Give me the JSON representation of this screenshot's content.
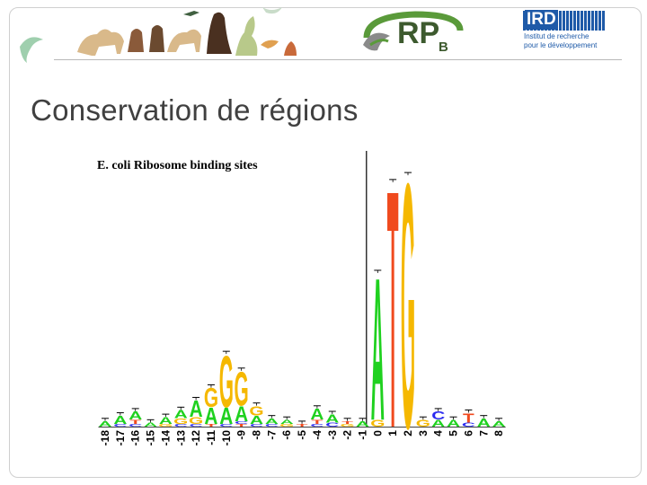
{
  "slide": {
    "title": "Conservation de régions"
  },
  "logos": {
    "rpb_letters": "RP",
    "rpb_subscript": "B",
    "ird_name": "IRD",
    "ird_line1": "Institut de recherche",
    "ird_line2": "pour le développement"
  },
  "colors": {
    "A": "#1fd11f",
    "C": "#2a2af0",
    "G": "#f5b800",
    "T": "#f04a1e",
    "title": "#404040",
    "ird_blue": "#1e5aa8",
    "rpb_green": "#3d5a2e"
  },
  "chart_data": {
    "type": "sequence_logo",
    "title": "E. coli Ribosome binding sites",
    "xlabel": "",
    "ylabel": "",
    "ylim": [
      0,
      2
    ],
    "positions": [
      "-18",
      "-17",
      "-16",
      "-15",
      "-14",
      "-13",
      "-12",
      "-11",
      "-10",
      "-9",
      "-8",
      "-7",
      "-6",
      "-5",
      "-4",
      "-3",
      "-2",
      "-1",
      "0",
      "1",
      "2",
      "3",
      "4",
      "5",
      "6",
      "7",
      "8"
    ],
    "letters": [
      [
        {
          "b": "A",
          "v": 0.04
        }
      ],
      [
        {
          "b": "C",
          "v": 0.02
        },
        {
          "b": "A",
          "v": 0.06
        }
      ],
      [
        {
          "b": "C",
          "v": 0.02
        },
        {
          "b": "T",
          "v": 0.03
        },
        {
          "b": "A",
          "v": 0.06
        }
      ],
      [
        {
          "b": "A",
          "v": 0.03
        }
      ],
      [
        {
          "b": "G",
          "v": 0.02
        },
        {
          "b": "A",
          "v": 0.05
        }
      ],
      [
        {
          "b": "C",
          "v": 0.02
        },
        {
          "b": "G",
          "v": 0.04
        },
        {
          "b": "A",
          "v": 0.06
        }
      ],
      [
        {
          "b": "C",
          "v": 0.02
        },
        {
          "b": "G",
          "v": 0.05
        },
        {
          "b": "A",
          "v": 0.12
        }
      ],
      [
        {
          "b": "T",
          "v": 0.02
        },
        {
          "b": "A",
          "v": 0.12
        },
        {
          "b": "G",
          "v": 0.14
        }
      ],
      [
        {
          "b": "C",
          "v": 0.02
        },
        {
          "b": "A",
          "v": 0.12
        },
        {
          "b": "G",
          "v": 0.38
        }
      ],
      [
        {
          "b": "T",
          "v": 0.02
        },
        {
          "b": "C",
          "v": 0.02
        },
        {
          "b": "A",
          "v": 0.11
        },
        {
          "b": "G",
          "v": 0.25
        }
      ],
      [
        {
          "b": "C",
          "v": 0.02
        },
        {
          "b": "A",
          "v": 0.06
        },
        {
          "b": "G",
          "v": 0.07
        }
      ],
      [
        {
          "b": "C",
          "v": 0.02
        },
        {
          "b": "A",
          "v": 0.04
        }
      ],
      [
        {
          "b": "G",
          "v": 0.02
        },
        {
          "b": "A",
          "v": 0.03
        }
      ],
      [
        {
          "b": "T",
          "v": 0.02
        }
      ],
      [
        {
          "b": "C",
          "v": 0.02
        },
        {
          "b": "T",
          "v": 0.03
        },
        {
          "b": "A",
          "v": 0.08
        }
      ],
      [
        {
          "b": "C",
          "v": 0.03
        },
        {
          "b": "A",
          "v": 0.06
        }
      ],
      [
        {
          "b": "G",
          "v": 0.02
        },
        {
          "b": "T",
          "v": 0.02
        }
      ],
      [
        {
          "b": "A",
          "v": 0.04
        }
      ],
      [
        {
          "b": "G",
          "v": 0.05
        },
        {
          "b": "A",
          "v": 1.05
        }
      ],
      [
        {
          "b": "T",
          "v": 1.75
        }
      ],
      [
        {
          "b": "G",
          "v": 1.8
        }
      ],
      [
        {
          "b": "G",
          "v": 0.05
        }
      ],
      [
        {
          "b": "A",
          "v": 0.05
        },
        {
          "b": "C",
          "v": 0.06
        }
      ],
      [
        {
          "b": "A",
          "v": 0.05
        }
      ],
      [
        {
          "b": "C",
          "v": 0.03
        },
        {
          "b": "T",
          "v": 0.07
        }
      ],
      [
        {
          "b": "A",
          "v": 0.06
        }
      ],
      [
        {
          "b": "A",
          "v": 0.04
        }
      ]
    ]
  }
}
